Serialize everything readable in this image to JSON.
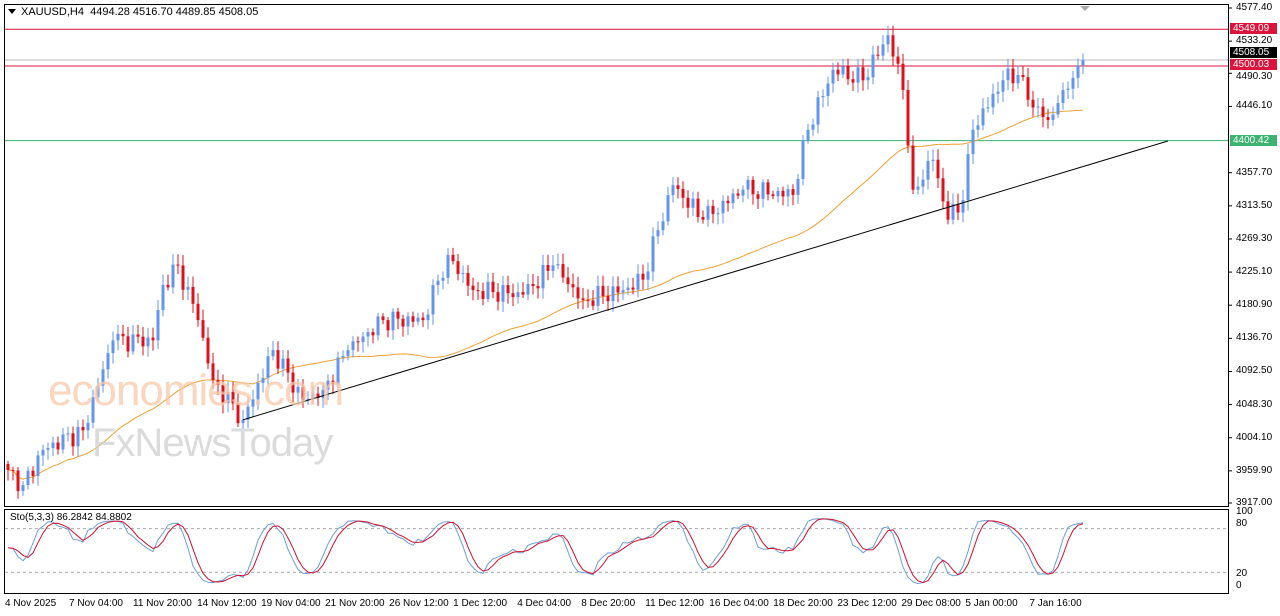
{
  "header": {
    "symbol": "XAUUSD,H4",
    "open": "4494.28",
    "high": "4516.70",
    "low": "4489.85",
    "close": "4508.05"
  },
  "watermark": {
    "line1": "economies.com",
    "line2": "FxNewsToday"
  },
  "price_axis": [
    "4577.40",
    "4533.20",
    "4490.30",
    "4446.10",
    "4357.70",
    "4313.50",
    "4269.30",
    "4225.10",
    "4180.90",
    "4136.70",
    "4092.50",
    "4048.30",
    "4004.10",
    "3959.90",
    "3917.00"
  ],
  "levels": {
    "resistance_1": {
      "label": "4549.09",
      "color": "#dc143c"
    },
    "resistance_2": {
      "label": "4500.03",
      "color": "#dc143c"
    },
    "current": {
      "label": "4508.05",
      "color": "#000000"
    },
    "support": {
      "label": "4400.42",
      "color": "#3cb371"
    }
  },
  "stochastic": {
    "label": "Sto(5,3,3) 86.2842 84.8802",
    "levels": [
      "100",
      "80",
      "20",
      "0"
    ]
  },
  "time_axis": [
    "4 Nov 2025",
    "7 Nov 04:00",
    "11 Nov 20:00",
    "14 Nov 12:00",
    "19 Nov 04:00",
    "21 Nov 20:00",
    "26 Nov 12:00",
    "1 Dec 12:00",
    "4 Dec 04:00",
    "8 Dec 20:00",
    "11 Dec 12:00",
    "16 Dec 04:00",
    "18 Dec 20:00",
    "23 Dec 12:00",
    "29 Dec 08:00",
    "5 Jan 00:00",
    "7 Jan 16:00"
  ],
  "colors": {
    "bull": "#6495ed",
    "bear": "#e0101a",
    "ma": "#f0a030",
    "trend": "#000000"
  },
  "chart_data": {
    "type": "candlestick",
    "timeframe": "H4",
    "ylim": [
      3917.0,
      4577.4
    ],
    "bars_per_label": 13,
    "close_waypoints": [
      [
        0,
        3961
      ],
      [
        3,
        3941
      ],
      [
        7,
        3988
      ],
      [
        15,
        4014
      ],
      [
        21,
        4134
      ],
      [
        29,
        4134
      ],
      [
        31,
        4208
      ],
      [
        34,
        4234
      ],
      [
        38,
        4161
      ],
      [
        41,
        4081
      ],
      [
        47,
        4028
      ],
      [
        53,
        4121
      ],
      [
        59,
        4054
      ],
      [
        63,
        4068
      ],
      [
        68,
        4121
      ],
      [
        75,
        4161
      ],
      [
        83,
        4161
      ],
      [
        88,
        4248
      ],
      [
        93,
        4201
      ],
      [
        103,
        4195
      ],
      [
        109,
        4234
      ],
      [
        115,
        4188
      ],
      [
        123,
        4201
      ],
      [
        127,
        4215
      ],
      [
        130,
        4281
      ],
      [
        133,
        4341
      ],
      [
        139,
        4295
      ],
      [
        147,
        4335
      ],
      [
        157,
        4328
      ],
      [
        160,
        4415
      ],
      [
        165,
        4495
      ],
      [
        171,
        4481
      ],
      [
        176,
        4541
      ],
      [
        179,
        4468
      ],
      [
        181,
        4335
      ],
      [
        185,
        4375
      ],
      [
        188,
        4295
      ],
      [
        191,
        4321
      ],
      [
        193,
        4415
      ],
      [
        199,
        4481
      ],
      [
        202,
        4488
      ],
      [
        204,
        4455
      ],
      [
        208,
        4428
      ],
      [
        211,
        4468
      ],
      [
        214,
        4501
      ],
      [
        215,
        4508
      ]
    ],
    "trendline": [
      [
        47,
        4028
      ],
      [
        232,
        4400
      ]
    ],
    "ma_period": 50
  }
}
